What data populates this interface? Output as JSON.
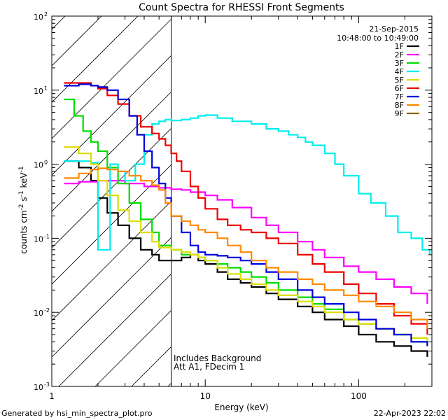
{
  "chart_data": {
    "type": "line",
    "title": "Count Spectra for RHESSI Front Segments",
    "xlabel": "Energy (keV)",
    "ylabel": "counts cm^-2 s^-1 keV^-1",
    "xscale": "log",
    "yscale": "log",
    "xlim": [
      1,
      300
    ],
    "ylim": [
      0.001,
      100
    ],
    "x_ticks": [
      {
        "value": 1,
        "label": "1"
      },
      {
        "value": 10,
        "label": "10"
      },
      {
        "value": 100,
        "label": "100"
      }
    ],
    "y_ticks": [
      {
        "value": 100,
        "base": "10",
        "exp": "2"
      },
      {
        "value": 10,
        "base": "10",
        "exp": "1"
      },
      {
        "value": 1,
        "base": "10",
        "exp": "0"
      },
      {
        "value": 0.1,
        "base": "10",
        "exp": "-1"
      },
      {
        "value": 0.01,
        "base": "10",
        "exp": "-2"
      },
      {
        "value": 0.001,
        "base": "10",
        "exp": "-3"
      }
    ],
    "date": "21-Sep-2015",
    "time_range": "10:48:00 to 10:49:00",
    "vertical_line_x": 6,
    "annotations": [
      "Includes Background",
      "Att A1, FDecim 1"
    ],
    "legend_position": "top-right",
    "series": [
      {
        "name": "1F",
        "color": "#000000",
        "x": [
          1.2,
          1.5,
          1.8,
          2.0,
          2.3,
          2.7,
          3.2,
          3.8,
          4.5,
          5.0,
          6,
          7,
          8,
          9,
          10,
          12,
          14,
          17,
          20,
          25,
          30,
          40,
          50,
          60,
          80,
          100,
          130,
          170,
          220,
          280
        ],
        "y": [
          1.1,
          0.9,
          0.6,
          0.35,
          0.22,
          0.15,
          0.1,
          0.07,
          0.06,
          0.05,
          0.05,
          0.055,
          0.06,
          0.05,
          0.045,
          0.035,
          0.028,
          0.025,
          0.022,
          0.018,
          0.015,
          0.012,
          0.01,
          0.008,
          0.0065,
          0.005,
          0.004,
          0.0035,
          0.003,
          0.0025
        ]
      },
      {
        "name": "2F",
        "color": "#ff00ff",
        "x": [
          1.2,
          1.5,
          2.0,
          3.0,
          4.0,
          5.0,
          6,
          7,
          8,
          10,
          12,
          15,
          20,
          25,
          30,
          40,
          50,
          60,
          80,
          100,
          130,
          170,
          220,
          280
        ],
        "y": [
          0.55,
          0.58,
          0.6,
          0.55,
          0.5,
          0.48,
          0.46,
          0.45,
          0.42,
          0.38,
          0.33,
          0.26,
          0.19,
          0.15,
          0.12,
          0.09,
          0.07,
          0.055,
          0.042,
          0.035,
          0.028,
          0.022,
          0.018,
          0.013
        ]
      },
      {
        "name": "3F",
        "color": "#00dd00",
        "x": [
          1.2,
          1.4,
          1.6,
          1.8,
          2.0,
          2.3,
          2.7,
          3.2,
          3.8,
          4.5,
          5.0,
          6,
          7,
          8,
          9,
          10,
          12,
          14,
          17,
          20,
          25,
          30,
          40,
          50,
          60,
          80,
          100,
          130,
          170,
          220,
          280
        ],
        "y": [
          7.5,
          4.5,
          2.8,
          2.0,
          1.5,
          0.9,
          0.55,
          0.3,
          0.18,
          0.12,
          0.08,
          0.07,
          0.06,
          0.06,
          0.055,
          0.05,
          0.045,
          0.04,
          0.035,
          0.03,
          0.025,
          0.02,
          0.016,
          0.013,
          0.011,
          0.008,
          0.007,
          0.006,
          0.005,
          0.004,
          0.0035
        ]
      },
      {
        "name": "4F",
        "color": "#00eeee",
        "x": [
          1.2,
          1.5,
          1.8,
          2.0,
          2.2,
          2.4,
          2.7,
          3.0,
          3.5,
          4.0,
          4.5,
          5.0,
          5.5,
          6,
          7,
          8,
          9,
          10,
          12,
          15,
          20,
          25,
          30,
          35,
          40,
          45,
          50,
          60,
          70,
          80,
          100,
          120,
          150,
          180,
          220,
          260,
          290
        ],
        "y": [
          1.1,
          1.1,
          1.05,
          0.07,
          0.07,
          1.0,
          0.8,
          0.6,
          1.0,
          2.5,
          3.5,
          3.8,
          4.0,
          3.9,
          4.0,
          4.2,
          4.5,
          4.6,
          4.2,
          3.8,
          3.5,
          3.0,
          2.8,
          2.5,
          2.3,
          2.0,
          1.8,
          1.4,
          1.0,
          0.7,
          0.4,
          0.3,
          0.2,
          0.12,
          0.1,
          0.07,
          0.06
        ]
      },
      {
        "name": "5F",
        "color": "#dddd00",
        "x": [
          1.2,
          1.5,
          1.8,
          2.0,
          2.3,
          2.7,
          3.2,
          3.8,
          4.5,
          5.0,
          6,
          7,
          8,
          9,
          10,
          12,
          14,
          17,
          20,
          25,
          30,
          40,
          50,
          60,
          80,
          100,
          130,
          170,
          220,
          280
        ],
        "y": [
          1.7,
          1.4,
          1.0,
          0.6,
          0.38,
          0.24,
          0.17,
          0.12,
          0.09,
          0.075,
          0.07,
          0.065,
          0.06,
          0.055,
          0.05,
          0.04,
          0.033,
          0.028,
          0.024,
          0.02,
          0.017,
          0.014,
          0.012,
          0.01,
          0.008,
          0.007,
          0.006,
          0.005,
          0.0045,
          0.004
        ]
      },
      {
        "name": "6F",
        "color": "#ee0000",
        "x": [
          1.2,
          1.5,
          1.8,
          2.0,
          2.3,
          2.7,
          3.2,
          3.8,
          4.5,
          5.0,
          5.5,
          6,
          6.5,
          7,
          8,
          9,
          10,
          12,
          14,
          17,
          20,
          25,
          30,
          40,
          50,
          60,
          80,
          100,
          130,
          170,
          220,
          280
        ],
        "y": [
          12.5,
          12.5,
          11.5,
          10.5,
          8.5,
          6.5,
          4.5,
          3.2,
          2.6,
          2.2,
          1.8,
          1.4,
          1.1,
          0.8,
          0.5,
          0.35,
          0.25,
          0.18,
          0.15,
          0.13,
          0.12,
          0.1,
          0.085,
          0.06,
          0.045,
          0.035,
          0.024,
          0.018,
          0.013,
          0.009,
          0.007,
          0.005
        ]
      },
      {
        "name": "7F",
        "color": "#0000dd",
        "x": [
          1.2,
          1.5,
          1.8,
          2.0,
          2.3,
          2.7,
          3.2,
          3.6,
          4.0,
          4.5,
          5.0,
          5.5,
          6,
          7,
          8,
          9,
          10,
          12,
          14,
          17,
          20,
          25,
          30,
          40,
          50,
          60,
          80,
          100,
          130,
          170,
          220,
          280
        ],
        "y": [
          11.5,
          12.0,
          11.5,
          11.0,
          10.0,
          7.5,
          4.5,
          2.5,
          1.5,
          0.9,
          0.55,
          0.35,
          0.2,
          0.12,
          0.08,
          0.065,
          0.06,
          0.058,
          0.055,
          0.05,
          0.045,
          0.035,
          0.028,
          0.02,
          0.016,
          0.013,
          0.01,
          0.008,
          0.006,
          0.005,
          0.004,
          0.0035
        ]
      },
      {
        "name": "8F",
        "color": "#ff8800",
        "x": [
          1.2,
          1.5,
          1.8,
          2.0,
          2.3,
          2.7,
          3.2,
          3.8,
          4.5,
          5.0,
          5.5,
          6,
          7,
          8,
          9,
          10,
          12,
          14,
          17,
          20,
          25,
          30,
          40,
          50,
          60,
          80,
          100,
          130,
          170,
          220,
          280
        ],
        "y": [
          0.65,
          0.75,
          0.85,
          0.88,
          0.85,
          0.8,
          0.7,
          0.6,
          0.52,
          0.45,
          0.3,
          0.2,
          0.17,
          0.15,
          0.13,
          0.12,
          0.1,
          0.08,
          0.065,
          0.05,
          0.04,
          0.035,
          0.028,
          0.024,
          0.02,
          0.017,
          0.014,
          0.012,
          0.01,
          0.008,
          0.006
        ]
      },
      {
        "name": "9F",
        "color": "#886600",
        "x": [],
        "y": []
      }
    ]
  },
  "footer": {
    "left": "Generated by hsi_min_spectra_plot.pro",
    "right": "22-Apr-2023 22:02"
  }
}
